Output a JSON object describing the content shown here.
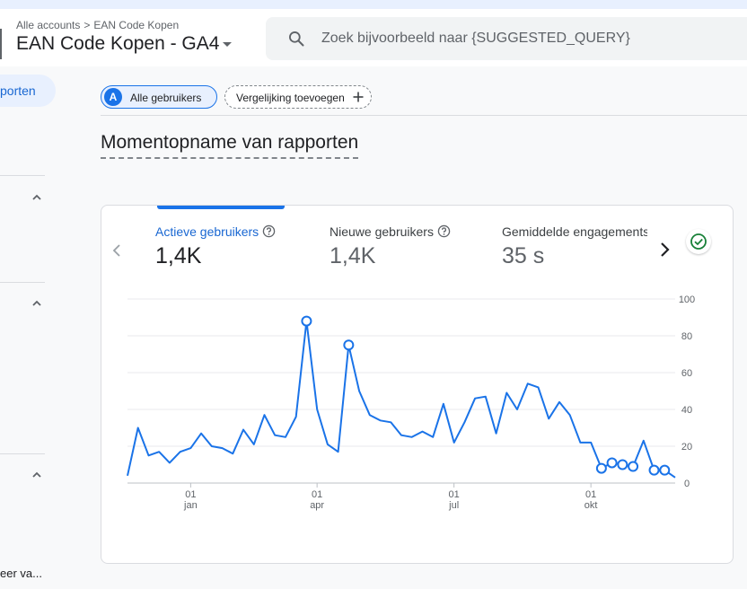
{
  "header": {
    "breadcrumb": [
      "Alle accounts",
      "EAN Code Kopen"
    ],
    "property_name": "EAN Code Kopen - GA4",
    "search_placeholder": "Zoek bijvoorbeeld naar {SUGGESTED_QUERY}"
  },
  "sidebar": {
    "active_item": "porten",
    "bottom_item": "eer va..."
  },
  "filters": {
    "segment_avatar": "A",
    "segment_label": "Alle gebruikers",
    "compare_label": "Vergelijking toevoegen"
  },
  "page": {
    "title": "Momentopname van rapporten"
  },
  "card": {
    "metrics": [
      {
        "label": "Actieve gebruikers",
        "value": "1,4K",
        "active": true
      },
      {
        "label": "Nieuwe gebruikers",
        "value": "1,4K",
        "active": false
      },
      {
        "label": "Gemiddelde engagementstijd",
        "value": "35 s",
        "active": false
      }
    ]
  },
  "colors": {
    "accent": "#1a73e8",
    "line": "#1a73e8",
    "success": "#188038"
  },
  "icons": {
    "search": "search-icon",
    "help": "help-circle-icon",
    "check": "check-circle-icon",
    "prev": "chevron-left-icon",
    "next": "chevron-right-icon"
  },
  "chart_data": {
    "type": "line",
    "series": [
      {
        "values": [
          4,
          30,
          15,
          17,
          11,
          17,
          19,
          27,
          20,
          19,
          16,
          29,
          21,
          37,
          26,
          25,
          36,
          88,
          40,
          21,
          17,
          75,
          50,
          37,
          34,
          33,
          26,
          25,
          28,
          25,
          43,
          22,
          33,
          46,
          47,
          27,
          49,
          40,
          54,
          52,
          35,
          44,
          37,
          22,
          22,
          8,
          11,
          10,
          9,
          23,
          7,
          7,
          3
        ],
        "markers": [
          17,
          21,
          45,
          46,
          47,
          48,
          50,
          51
        ]
      }
    ],
    "x_tick_labels": [
      {
        "index": 6,
        "day": "01",
        "month": "jan"
      },
      {
        "index": 18,
        "day": "01",
        "month": "apr"
      },
      {
        "index": 31,
        "day": "01",
        "month": "jul"
      },
      {
        "index": 44,
        "day": "01",
        "month": "okt"
      }
    ],
    "y_ticks": [
      0,
      20,
      40,
      60,
      80,
      100
    ],
    "ylim": [
      0,
      100
    ],
    "y_axis_position": "right",
    "grid": true
  }
}
